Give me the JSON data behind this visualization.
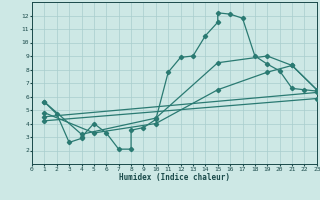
{
  "xlabel": "Humidex (Indice chaleur)",
  "xlim": [
    0,
    23
  ],
  "ylim": [
    1,
    13
  ],
  "xticks": [
    0,
    1,
    2,
    3,
    4,
    5,
    6,
    7,
    8,
    9,
    10,
    11,
    12,
    13,
    14,
    15,
    16,
    17,
    18,
    19,
    20,
    21,
    22,
    23
  ],
  "yticks": [
    2,
    3,
    4,
    5,
    6,
    7,
    8,
    9,
    10,
    11,
    12
  ],
  "background_color": "#cde8e5",
  "grid_color": "#a8cece",
  "line_color": "#2a7a72",
  "line1_x": [
    1,
    2,
    3,
    4,
    4,
    5,
    6,
    7,
    8,
    8,
    9,
    10,
    11,
    12,
    13,
    14,
    15,
    15,
    16,
    17,
    18,
    19,
    20,
    21,
    22,
    23
  ],
  "line1_y": [
    5.6,
    4.7,
    2.6,
    2.9,
    3.0,
    4.0,
    3.3,
    2.1,
    2.1,
    3.5,
    3.7,
    4.3,
    7.8,
    8.9,
    9.0,
    10.5,
    11.5,
    12.2,
    12.1,
    11.8,
    9.0,
    8.4,
    7.9,
    6.6,
    6.5,
    6.4
  ],
  "line2_x": [
    1,
    4,
    10,
    15,
    19,
    21,
    23
  ],
  "line2_y": [
    5.6,
    3.2,
    4.4,
    8.5,
    9.0,
    8.3,
    6.5
  ],
  "line3_x": [
    1,
    5,
    10,
    15,
    19,
    21,
    23
  ],
  "line3_y": [
    4.8,
    3.3,
    4.0,
    6.5,
    7.8,
    8.3,
    6.5
  ],
  "line4_x": [
    1,
    23
  ],
  "line4_y": [
    4.5,
    6.3
  ],
  "line5_x": [
    1,
    23
  ],
  "line5_y": [
    4.2,
    5.85
  ]
}
